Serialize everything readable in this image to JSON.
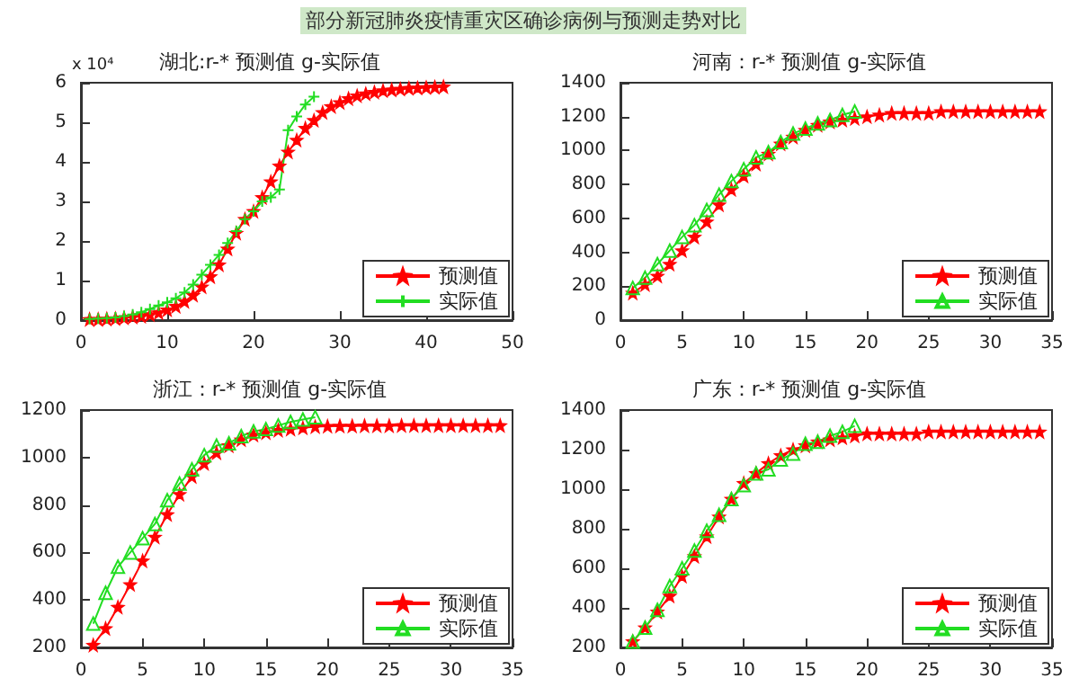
{
  "chart_data": [
    {
      "type": "line",
      "title": "湖北:r-* 预测值 g-实际值",
      "annotations": [
        "部分新冠肺炎疫情重灾区确诊病例与预测走势对比",
        "x 10⁴"
      ],
      "xlim": [
        0,
        50
      ],
      "xticks": [
        0,
        10,
        20,
        30,
        40,
        50
      ],
      "ylim": [
        0,
        6
      ],
      "yticks": [
        0,
        1,
        2,
        3,
        4,
        5,
        6
      ],
      "legend": "bottom right",
      "grid": false,
      "series": [
        {
          "name": "预测值",
          "color": "#ff0000",
          "marker": "star",
          "x": [
            1,
            2,
            3,
            4,
            5,
            6,
            7,
            8,
            9,
            10,
            11,
            12,
            13,
            14,
            15,
            16,
            17,
            18,
            19,
            20,
            21,
            22,
            23,
            24,
            25,
            26,
            27,
            28,
            29,
            30,
            31,
            32,
            33,
            34,
            35,
            36,
            37,
            38,
            39,
            40,
            41,
            42
          ],
          "values": [
            0.02,
            0.02,
            0.03,
            0.04,
            0.06,
            0.08,
            0.1,
            0.14,
            0.19,
            0.26,
            0.35,
            0.47,
            0.63,
            0.84,
            1.1,
            1.4,
            1.8,
            2.2,
            2.55,
            2.75,
            3.1,
            3.5,
            3.9,
            4.25,
            4.55,
            4.85,
            5.05,
            5.25,
            5.4,
            5.5,
            5.6,
            5.67,
            5.72,
            5.76,
            5.8,
            5.82,
            5.84,
            5.86,
            5.87,
            5.88,
            5.89,
            5.9
          ]
        },
        {
          "name": "实际值",
          "color": "#22dd22",
          "marker": "cross",
          "x": [
            1,
            2,
            3,
            4,
            5,
            6,
            7,
            8,
            9,
            10,
            11,
            12,
            13,
            14,
            15,
            16,
            17,
            18,
            19,
            20,
            21,
            22,
            23,
            24,
            25,
            26,
            27
          ],
          "values": [
            0.03,
            0.04,
            0.05,
            0.07,
            0.1,
            0.14,
            0.2,
            0.28,
            0.37,
            0.45,
            0.55,
            0.7,
            0.9,
            1.15,
            1.4,
            1.65,
            1.95,
            2.25,
            2.55,
            2.75,
            3.0,
            3.1,
            3.3,
            4.8,
            5.15,
            5.45,
            5.65
          ]
        }
      ]
    },
    {
      "type": "line",
      "title": "河南：r-* 预测值 g-实际值",
      "xlim": [
        0,
        35
      ],
      "xticks": [
        0,
        5,
        10,
        15,
        20,
        25,
        30,
        35
      ],
      "ylim": [
        0,
        1400
      ],
      "yticks": [
        0,
        200,
        400,
        600,
        800,
        1000,
        1200,
        1400
      ],
      "legend": "bottom right",
      "grid": false,
      "series": [
        {
          "name": "预测值",
          "color": "#ff0000",
          "marker": "star",
          "x": [
            1,
            2,
            3,
            4,
            5,
            6,
            7,
            8,
            9,
            10,
            11,
            12,
            13,
            14,
            15,
            16,
            17,
            18,
            19,
            20,
            21,
            22,
            23,
            24,
            25,
            26,
            27,
            28,
            29,
            30,
            31,
            32,
            33,
            34
          ],
          "values": [
            160,
            210,
            260,
            330,
            410,
            490,
            580,
            680,
            770,
            850,
            920,
            980,
            1040,
            1080,
            1120,
            1150,
            1170,
            1180,
            1190,
            1200,
            1210,
            1220,
            1220,
            1220,
            1220,
            1230,
            1230,
            1230,
            1230,
            1230,
            1230,
            1230,
            1230,
            1230
          ]
        },
        {
          "name": "实际值",
          "color": "#22dd22",
          "marker": "triangle",
          "x": [
            1,
            2,
            3,
            4,
            5,
            6,
            7,
            8,
            9,
            10,
            11,
            12,
            13,
            14,
            15,
            16,
            17,
            18,
            19
          ],
          "values": [
            190,
            250,
            330,
            410,
            490,
            560,
            650,
            740,
            820,
            890,
            960,
            990,
            1050,
            1100,
            1130,
            1160,
            1180,
            1210,
            1230
          ]
        }
      ]
    },
    {
      "type": "line",
      "title": "浙江：r-* 预测值 g-实际值",
      "xlim": [
        0,
        35
      ],
      "xticks": [
        0,
        5,
        10,
        15,
        20,
        25,
        30,
        35
      ],
      "ylim": [
        200,
        1200
      ],
      "yticks": [
        200,
        400,
        600,
        800,
        1000,
        1200
      ],
      "legend": "bottom right",
      "grid": false,
      "series": [
        {
          "name": "预测值",
          "color": "#ff0000",
          "marker": "star",
          "x": [
            1,
            2,
            3,
            4,
            5,
            6,
            7,
            8,
            9,
            10,
            11,
            12,
            13,
            14,
            15,
            16,
            17,
            18,
            19,
            20,
            21,
            22,
            23,
            24,
            25,
            26,
            27,
            28,
            29,
            30,
            31,
            32,
            33,
            34
          ],
          "values": [
            210,
            280,
            370,
            465,
            565,
            665,
            760,
            845,
            920,
            975,
            1020,
            1050,
            1075,
            1095,
            1105,
            1115,
            1120,
            1125,
            1130,
            1132,
            1133,
            1133,
            1134,
            1134,
            1134,
            1135,
            1135,
            1135,
            1135,
            1135,
            1135,
            1135,
            1135,
            1135
          ]
        },
        {
          "name": "实际值",
          "color": "#22dd22",
          "marker": "triangle",
          "x": [
            1,
            2,
            3,
            4,
            5,
            6,
            7,
            8,
            9,
            10,
            11,
            12,
            13,
            14,
            15,
            16,
            17,
            18,
            19
          ],
          "values": [
            300,
            430,
            540,
            600,
            660,
            720,
            820,
            890,
            950,
            1010,
            1050,
            1060,
            1090,
            1110,
            1120,
            1135,
            1150,
            1160,
            1170
          ]
        }
      ]
    },
    {
      "type": "line",
      "title": "广东：r-* 预测值 g-实际值",
      "xlim": [
        0,
        35
      ],
      "xticks": [
        0,
        5,
        10,
        15,
        20,
        25,
        30,
        35
      ],
      "ylim": [
        200,
        1400
      ],
      "yticks": [
        200,
        400,
        600,
        800,
        1000,
        1200,
        1400
      ],
      "legend": "bottom right",
      "grid": false,
      "series": [
        {
          "name": "预测值",
          "color": "#ff0000",
          "marker": "star",
          "x": [
            1,
            2,
            3,
            4,
            5,
            6,
            7,
            8,
            9,
            10,
            11,
            12,
            13,
            14,
            15,
            16,
            17,
            18,
            19,
            20,
            21,
            22,
            23,
            24,
            25,
            26,
            27,
            28,
            29,
            30,
            31,
            32,
            33,
            34
          ],
          "values": [
            230,
            300,
            380,
            460,
            560,
            660,
            760,
            860,
            950,
            1030,
            1080,
            1130,
            1170,
            1200,
            1220,
            1240,
            1250,
            1260,
            1270,
            1280,
            1280,
            1280,
            1280,
            1280,
            1290,
            1290,
            1290,
            1290,
            1290,
            1290,
            1290,
            1290,
            1290,
            1290
          ]
        },
        {
          "name": "实际值",
          "color": "#22dd22",
          "marker": "triangle",
          "x": [
            1,
            2,
            3,
            4,
            5,
            6,
            7,
            8,
            9,
            10,
            11,
            12,
            13,
            14,
            15,
            16,
            17,
            18,
            19
          ],
          "values": [
            230,
            300,
            390,
            510,
            600,
            690,
            790,
            870,
            950,
            1020,
            1080,
            1100,
            1150,
            1180,
            1230,
            1240,
            1270,
            1290,
            1320
          ]
        }
      ]
    }
  ]
}
